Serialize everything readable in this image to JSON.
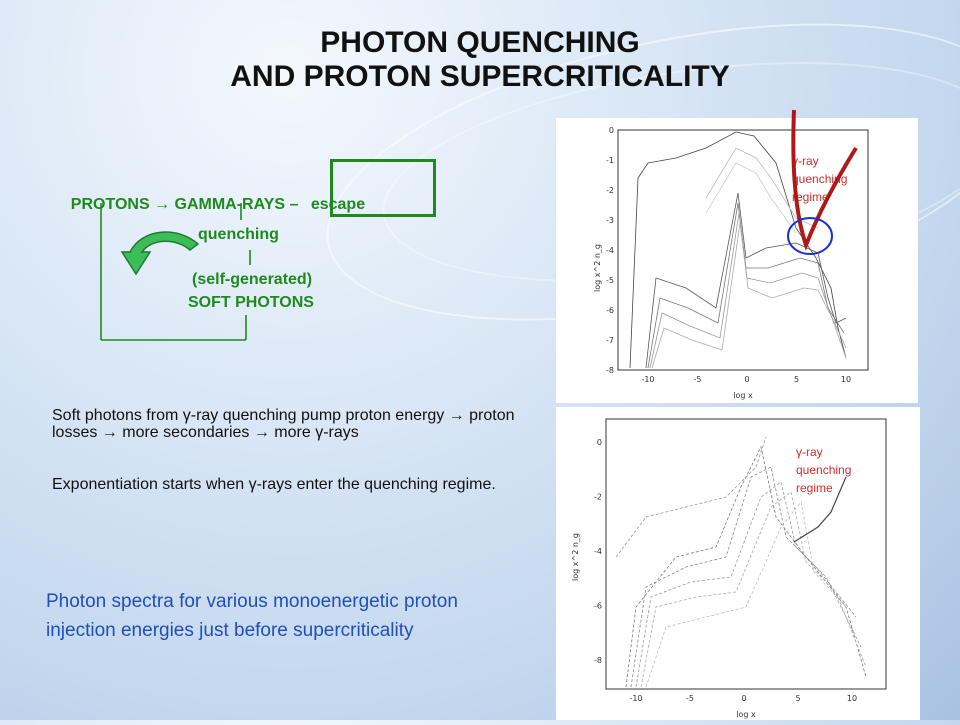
{
  "title": {
    "line1": "PHOTON QUENCHING",
    "line2": "AND PROTON SUPERCRITICALITY"
  },
  "diagram": {
    "row1_left": "PROTONS ",
    "arrow": "→",
    "row1_mid": " GAMMA-RAYS – ",
    "escape": "escape",
    "quenching": "quenching",
    "self_generated": "(self-generated)",
    "soft_photons": "SOFT PHOTONS",
    "colors": {
      "label": "#1e8a1e",
      "box": "#1e8a1e"
    }
  },
  "bullets": [
    "Soft photons from γ-ray quenching pump proton energy → proton losses → more secondaries → more γ-rays",
    "Exponentiation starts when γ-rays enter the quenching regime."
  ],
  "caption": "Photon spectra for various monoenergetic proton injection energies just before supercriticality",
  "plot_top": {
    "ylabel": "log x^2 n_g",
    "xlabel": "log x",
    "yticks": [
      "0",
      "-1",
      "-2",
      "-3",
      "-4",
      "-5",
      "-6",
      "-7",
      "-8"
    ],
    "xticks": [
      "-10",
      "-5",
      "0",
      "5",
      "10"
    ],
    "annotation": "γ-ray quenching regime",
    "annotation_lines": [
      "γ-ray",
      "quenching",
      "regime"
    ]
  },
  "plot_bottom": {
    "ylabel": "log x^2 n_g",
    "xlabel": "log x",
    "yticks": [
      "0",
      "-2",
      "-4",
      "-6",
      "-8"
    ],
    "xticks": [
      "-10",
      "-5",
      "0",
      "5",
      "10"
    ],
    "annotation": "γ-ray quenching regime",
    "annotation_lines": [
      "γ-ray",
      "quenching",
      "regime"
    ]
  },
  "colors": {
    "title": "#111111",
    "caption": "#1f4fb7",
    "annotation": "#d62a2a",
    "circle": "#1a2fd0",
    "check_mark": "#b01818"
  }
}
